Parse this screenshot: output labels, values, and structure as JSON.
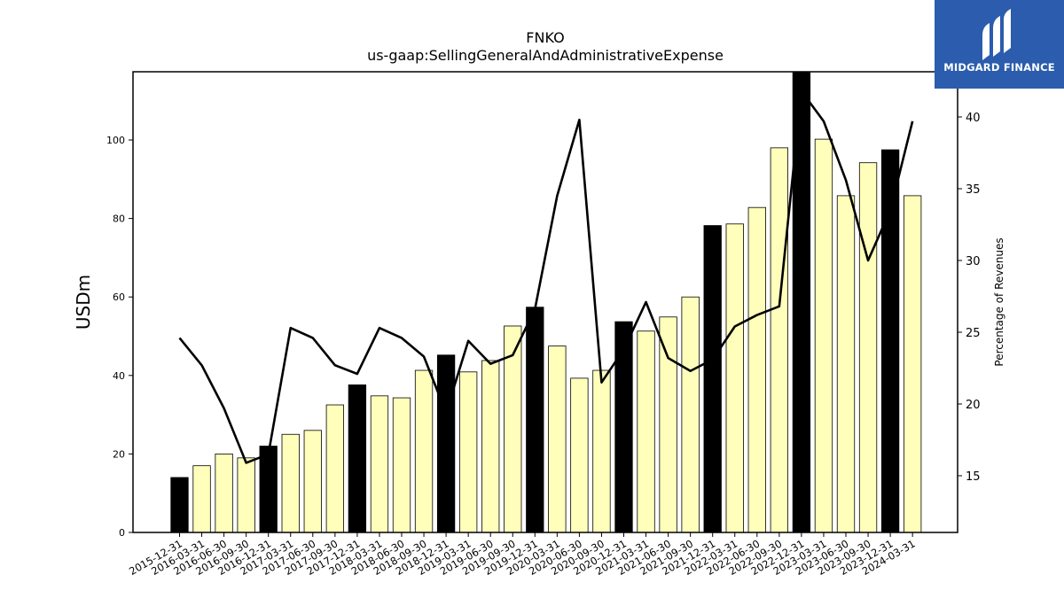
{
  "chart_data": {
    "type": "bar",
    "title": "FNKO",
    "subtitle": "us-gaap:SellingGeneralAndAdministrativeExpense",
    "ylabel": "USDm",
    "y2label": "Percentage of Revenues",
    "ylim": [
      0,
      112
    ],
    "y2lim": [
      11,
      43
    ],
    "yticks": [
      0,
      20,
      40,
      60,
      80,
      100
    ],
    "y2ticks": [
      15,
      20,
      25,
      30,
      35,
      40
    ],
    "grid": false,
    "categories": [
      "2015-12-31",
      "2016-03-31",
      "2016-06-30",
      "2016-09-30",
      "2016-12-31",
      "2017-03-31",
      "2017-06-30",
      "2017-09-30",
      "2017-12-31",
      "2018-03-31",
      "2018-06-30",
      "2018-09-30",
      "2018-12-31",
      "2019-03-31",
      "2019-06-30",
      "2019-09-30",
      "2019-12-31",
      "2020-03-31",
      "2020-06-30",
      "2020-09-30",
      "2020-12-31",
      "2021-03-31",
      "2021-06-30",
      "2021-09-30",
      "2021-12-31",
      "2022-03-31",
      "2022-06-30",
      "2022-09-30",
      "2022-12-31",
      "2023-03-31",
      "2023-06-30",
      "2023-09-30",
      "2023-12-31",
      "2024-03-31"
    ],
    "series": [
      {
        "kind": "bar",
        "values": [
          14,
          17,
          20,
          19,
          22,
          25,
          26,
          32.5,
          37.6,
          34.8,
          34.3,
          41.3,
          45.2,
          40.9,
          43.8,
          52.6,
          57.4,
          47.5,
          39.3,
          41.3,
          53.7,
          51.3,
          54.9,
          60.0,
          78.2,
          78.6,
          82.8,
          98.0,
          118.0,
          100.2,
          85.8,
          94.2,
          97.5,
          85.8
        ],
        "q4_color": "#000000",
        "other_color": "#ffffbb"
      },
      {
        "kind": "line",
        "axis": "right",
        "values": [
          24.6,
          22.7,
          19.7,
          15.9,
          16.5,
          25.3,
          24.6,
          22.7,
          22.1,
          25.3,
          24.6,
          23.3,
          19.4,
          24.4,
          22.8,
          23.4,
          26.6,
          34.5,
          39.8,
          21.5,
          23.8,
          27.1,
          23.2,
          22.3,
          23.1,
          25.4,
          26.2,
          26.8,
          41.8,
          39.7,
          35.6,
          30.0,
          33.5,
          39.7
        ],
        "color": "#000000"
      }
    ]
  },
  "branding": {
    "logo_text": "MIDGARD FINANCE",
    "logo_color": "#2b5cad"
  }
}
